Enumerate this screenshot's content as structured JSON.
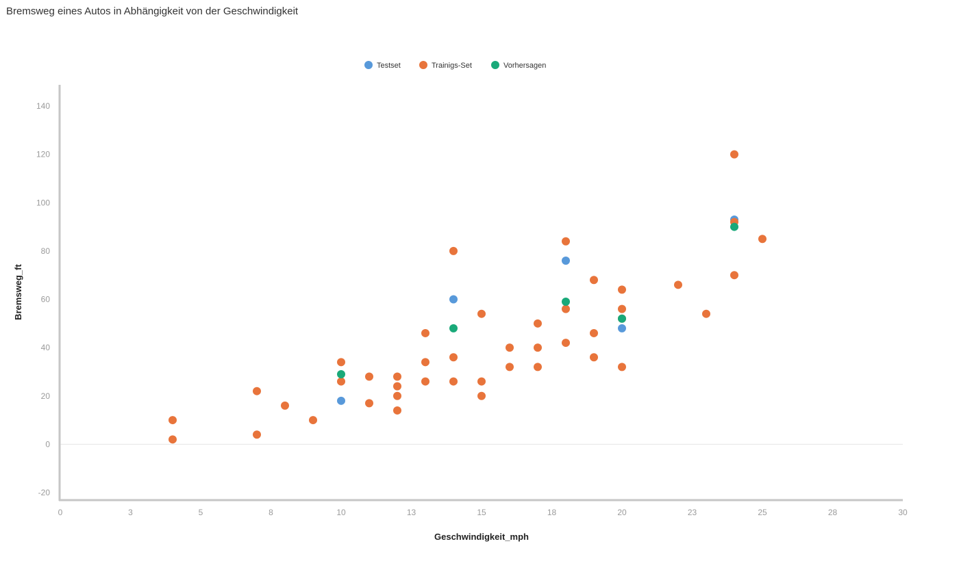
{
  "title": "Bremsweg eines Autos in Abhängigkeit von der Geschwindigkeit",
  "chart_data": {
    "type": "scatter",
    "title": "Bremsweg eines Autos in Abhängigkeit von der Geschwindigkeit",
    "xlabel": "Geschwindigkeit_mph",
    "ylabel": "Bremsweg_ft",
    "xlim": [
      0,
      30
    ],
    "ylim": [
      -20,
      140
    ],
    "x_ticks": [
      {
        "value": 0,
        "label": "0"
      },
      {
        "value": 2.5,
        "label": "3"
      },
      {
        "value": 5,
        "label": "5"
      },
      {
        "value": 7.5,
        "label": "8"
      },
      {
        "value": 10,
        "label": "10"
      },
      {
        "value": 12.5,
        "label": "13"
      },
      {
        "value": 15,
        "label": "15"
      },
      {
        "value": 17.5,
        "label": "18"
      },
      {
        "value": 20,
        "label": "20"
      },
      {
        "value": 22.5,
        "label": "23"
      },
      {
        "value": 25,
        "label": "25"
      },
      {
        "value": 27.5,
        "label": "28"
      },
      {
        "value": 30,
        "label": "30"
      }
    ],
    "y_ticks": [
      -20,
      0,
      20,
      40,
      60,
      80,
      100,
      120,
      140
    ],
    "grid": false,
    "zero_line": true,
    "legend_position": "top-center",
    "series": [
      {
        "name": "Testset",
        "color": "#5899DA",
        "points": [
          [
            10,
            18
          ],
          [
            14,
            60
          ],
          [
            18,
            76
          ],
          [
            20,
            48
          ],
          [
            24,
            93
          ]
        ]
      },
      {
        "name": "Trainigs-Set",
        "color": "#E8743B",
        "points": [
          [
            4,
            2
          ],
          [
            4,
            10
          ],
          [
            7,
            4
          ],
          [
            7,
            22
          ],
          [
            8,
            16
          ],
          [
            9,
            10
          ],
          [
            10,
            26
          ],
          [
            10,
            34
          ],
          [
            11,
            17
          ],
          [
            11,
            28
          ],
          [
            12,
            14
          ],
          [
            12,
            20
          ],
          [
            12,
            24
          ],
          [
            12,
            28
          ],
          [
            13,
            26
          ],
          [
            13,
            34
          ],
          [
            13,
            46
          ],
          [
            14,
            26
          ],
          [
            14,
            36
          ],
          [
            14,
            80
          ],
          [
            15,
            20
          ],
          [
            15,
            26
          ],
          [
            15,
            54
          ],
          [
            16,
            32
          ],
          [
            16,
            40
          ],
          [
            17,
            32
          ],
          [
            17,
            40
          ],
          [
            17,
            50
          ],
          [
            18,
            42
          ],
          [
            18,
            56
          ],
          [
            18,
            84
          ],
          [
            19,
            36
          ],
          [
            19,
            46
          ],
          [
            19,
            68
          ],
          [
            20,
            32
          ],
          [
            20,
            52
          ],
          [
            20,
            56
          ],
          [
            20,
            64
          ],
          [
            22,
            66
          ],
          [
            23,
            54
          ],
          [
            24,
            70
          ],
          [
            24,
            92
          ],
          [
            24,
            120
          ],
          [
            25,
            85
          ]
        ]
      },
      {
        "name": "Vorhersagen",
        "color": "#19A979",
        "points": [
          [
            10,
            29
          ],
          [
            14,
            48
          ],
          [
            18,
            59
          ],
          [
            20,
            52
          ],
          [
            24,
            90
          ]
        ]
      }
    ]
  }
}
